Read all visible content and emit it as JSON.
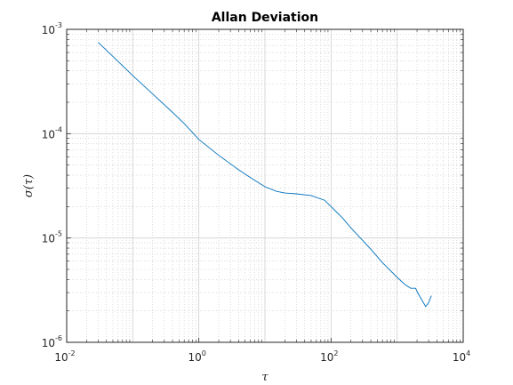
{
  "chart_data": {
    "type": "line",
    "title": "Allan Deviation",
    "xlabel": "τ",
    "ylabel": "σ(τ)",
    "xscale": "log",
    "yscale": "log",
    "xlim": [
      0.01,
      10000
    ],
    "ylim": [
      1e-06,
      0.001
    ],
    "grid": true,
    "minor_grid": true,
    "legend": "none",
    "line_color": "#0072BD",
    "x_ticks": [
      {
        "base": "10",
        "exp": "-2",
        "value": 0.01
      },
      {
        "base": "10",
        "exp": "0",
        "value": 1
      },
      {
        "base": "10",
        "exp": "2",
        "value": 100
      },
      {
        "base": "10",
        "exp": "4",
        "value": 10000
      }
    ],
    "y_ticks": [
      {
        "base": "10",
        "exp": "-6",
        "value": 1e-06
      },
      {
        "base": "10",
        "exp": "-5",
        "value": 1e-05
      },
      {
        "base": "10",
        "exp": "-4",
        "value": 0.0001
      },
      {
        "base": "10",
        "exp": "-3",
        "value": 0.001
      }
    ],
    "series": [
      {
        "x": [
          0.03,
          0.05,
          0.1,
          0.2,
          0.4,
          0.6,
          1,
          2,
          4,
          6,
          10,
          15,
          20,
          30,
          50,
          80,
          100,
          150,
          200,
          300,
          400,
          600,
          1000,
          1300,
          1600,
          1900,
          2100,
          2500,
          2700,
          3000,
          3300
        ],
        "y": [
          0.00075,
          0.00055,
          0.00036,
          0.00024,
          0.00016,
          0.000125,
          8.8e-05,
          6.2e-05,
          4.5e-05,
          3.8e-05,
          3.1e-05,
          2.8e-05,
          2.7e-05,
          2.65e-05,
          2.55e-05,
          2.3e-05,
          2e-05,
          1.55e-05,
          1.25e-05,
          9.5e-06,
          7.8e-06,
          5.8e-06,
          4.2e-06,
          3.6e-06,
          3.3e-06,
          3.3e-06,
          2.9e-06,
          2.4e-06,
          2.2e-06,
          2.4e-06,
          2.8e-06
        ]
      }
    ]
  }
}
